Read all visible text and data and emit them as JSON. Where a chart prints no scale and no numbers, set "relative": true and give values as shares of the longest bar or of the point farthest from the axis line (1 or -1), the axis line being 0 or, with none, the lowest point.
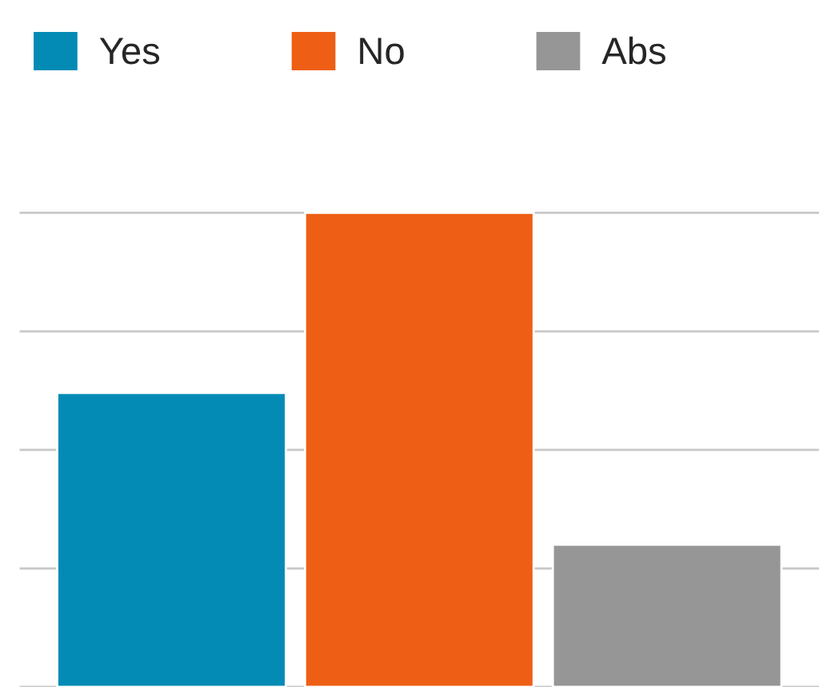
{
  "chart_data": {
    "type": "bar",
    "relative": true,
    "categories": [
      null
    ],
    "series": [
      {
        "name": "Yes",
        "color": "#038bb5",
        "values": [
          0.62
        ]
      },
      {
        "name": "No",
        "color": "#ee5f15",
        "values": [
          1
        ]
      },
      {
        "name": "Abs",
        "color": "#969696",
        "values": [
          0.3
        ]
      }
    ],
    "grid": "y",
    "legend": "top left"
  }
}
